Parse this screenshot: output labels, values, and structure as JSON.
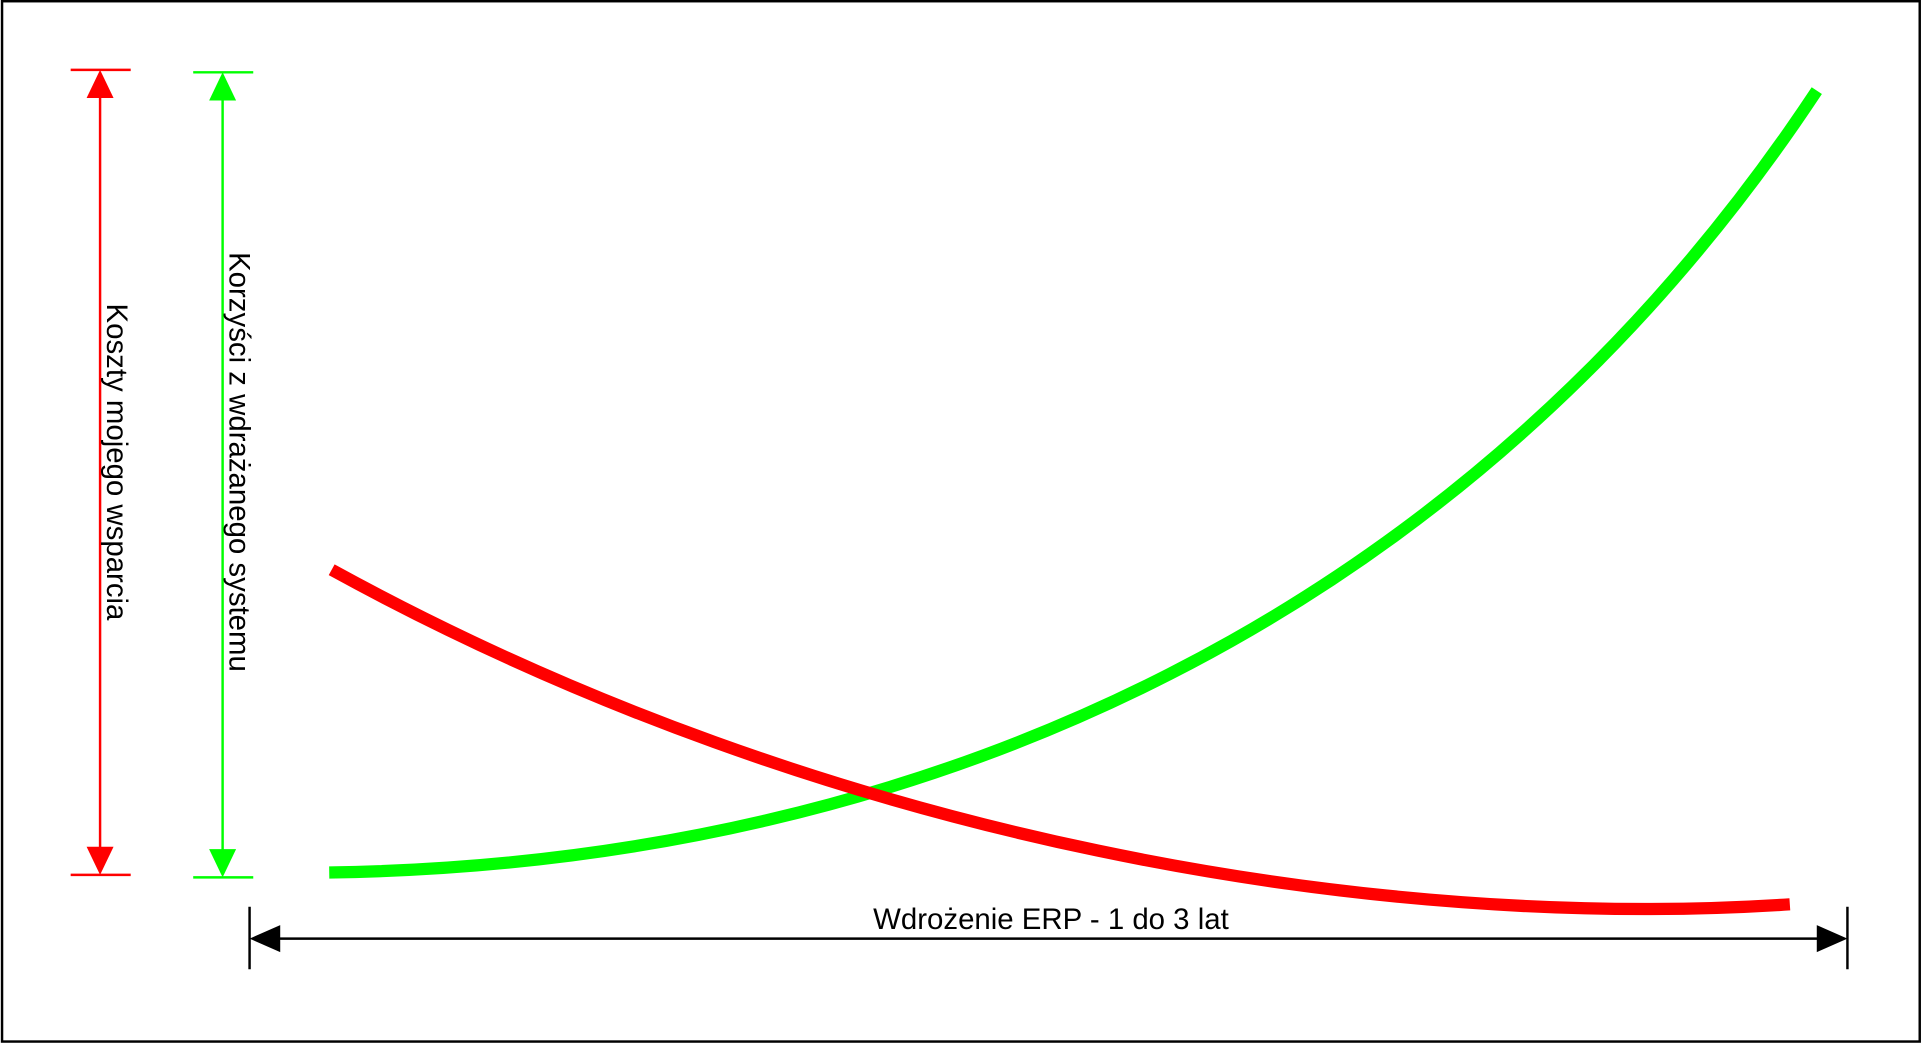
{
  "labels": {
    "costs": "Koszty mojego wsparcia",
    "benefits": "Korzyści z wdrażanego systemu",
    "timeline": "Wdrożenie ERP - 1 do 3 lat"
  }
}
